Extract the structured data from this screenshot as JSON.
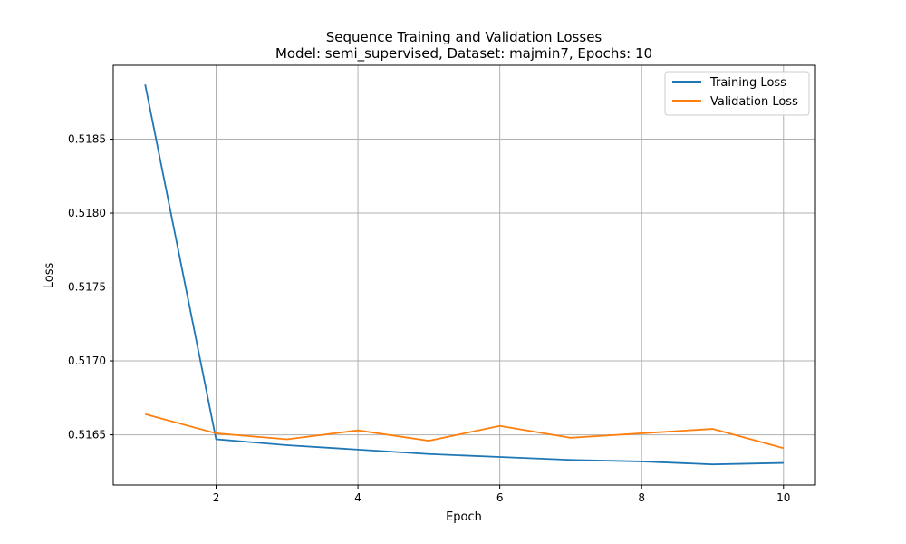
{
  "chart_data": {
    "type": "line",
    "title": "Sequence Training and Validation Losses",
    "subtitle": "Model: semi_supervised, Dataset: majmin7, Epochs: 10",
    "xlabel": "Epoch",
    "ylabel": "Loss",
    "x": [
      1,
      2,
      3,
      4,
      5,
      6,
      7,
      8,
      9,
      10
    ],
    "xlim": [
      0.55,
      10.45
    ],
    "ylim": [
      0.51616,
      0.519
    ],
    "x_ticks": [
      2,
      4,
      6,
      8,
      10
    ],
    "y_ticks": [
      0.5165,
      0.517,
      0.5175,
      0.518,
      0.5185
    ],
    "x_tick_labels": [
      "2",
      "4",
      "6",
      "8",
      "10"
    ],
    "y_tick_labels": [
      "0.5165",
      "0.5170",
      "0.5175",
      "0.5180",
      "0.5185"
    ],
    "grid": true,
    "legend_position": "top-right",
    "series": [
      {
        "name": "Training Loss",
        "color": "#1f77b4",
        "values": [
          0.51887,
          0.51647,
          0.51643,
          0.5164,
          0.51637,
          0.51635,
          0.51633,
          0.51632,
          0.5163,
          0.51631
        ]
      },
      {
        "name": "Validation Loss",
        "color": "#ff7f0e",
        "values": [
          0.51664,
          0.51651,
          0.51647,
          0.51653,
          0.51646,
          0.51656,
          0.51648,
          0.51651,
          0.51654,
          0.51641
        ]
      }
    ]
  }
}
